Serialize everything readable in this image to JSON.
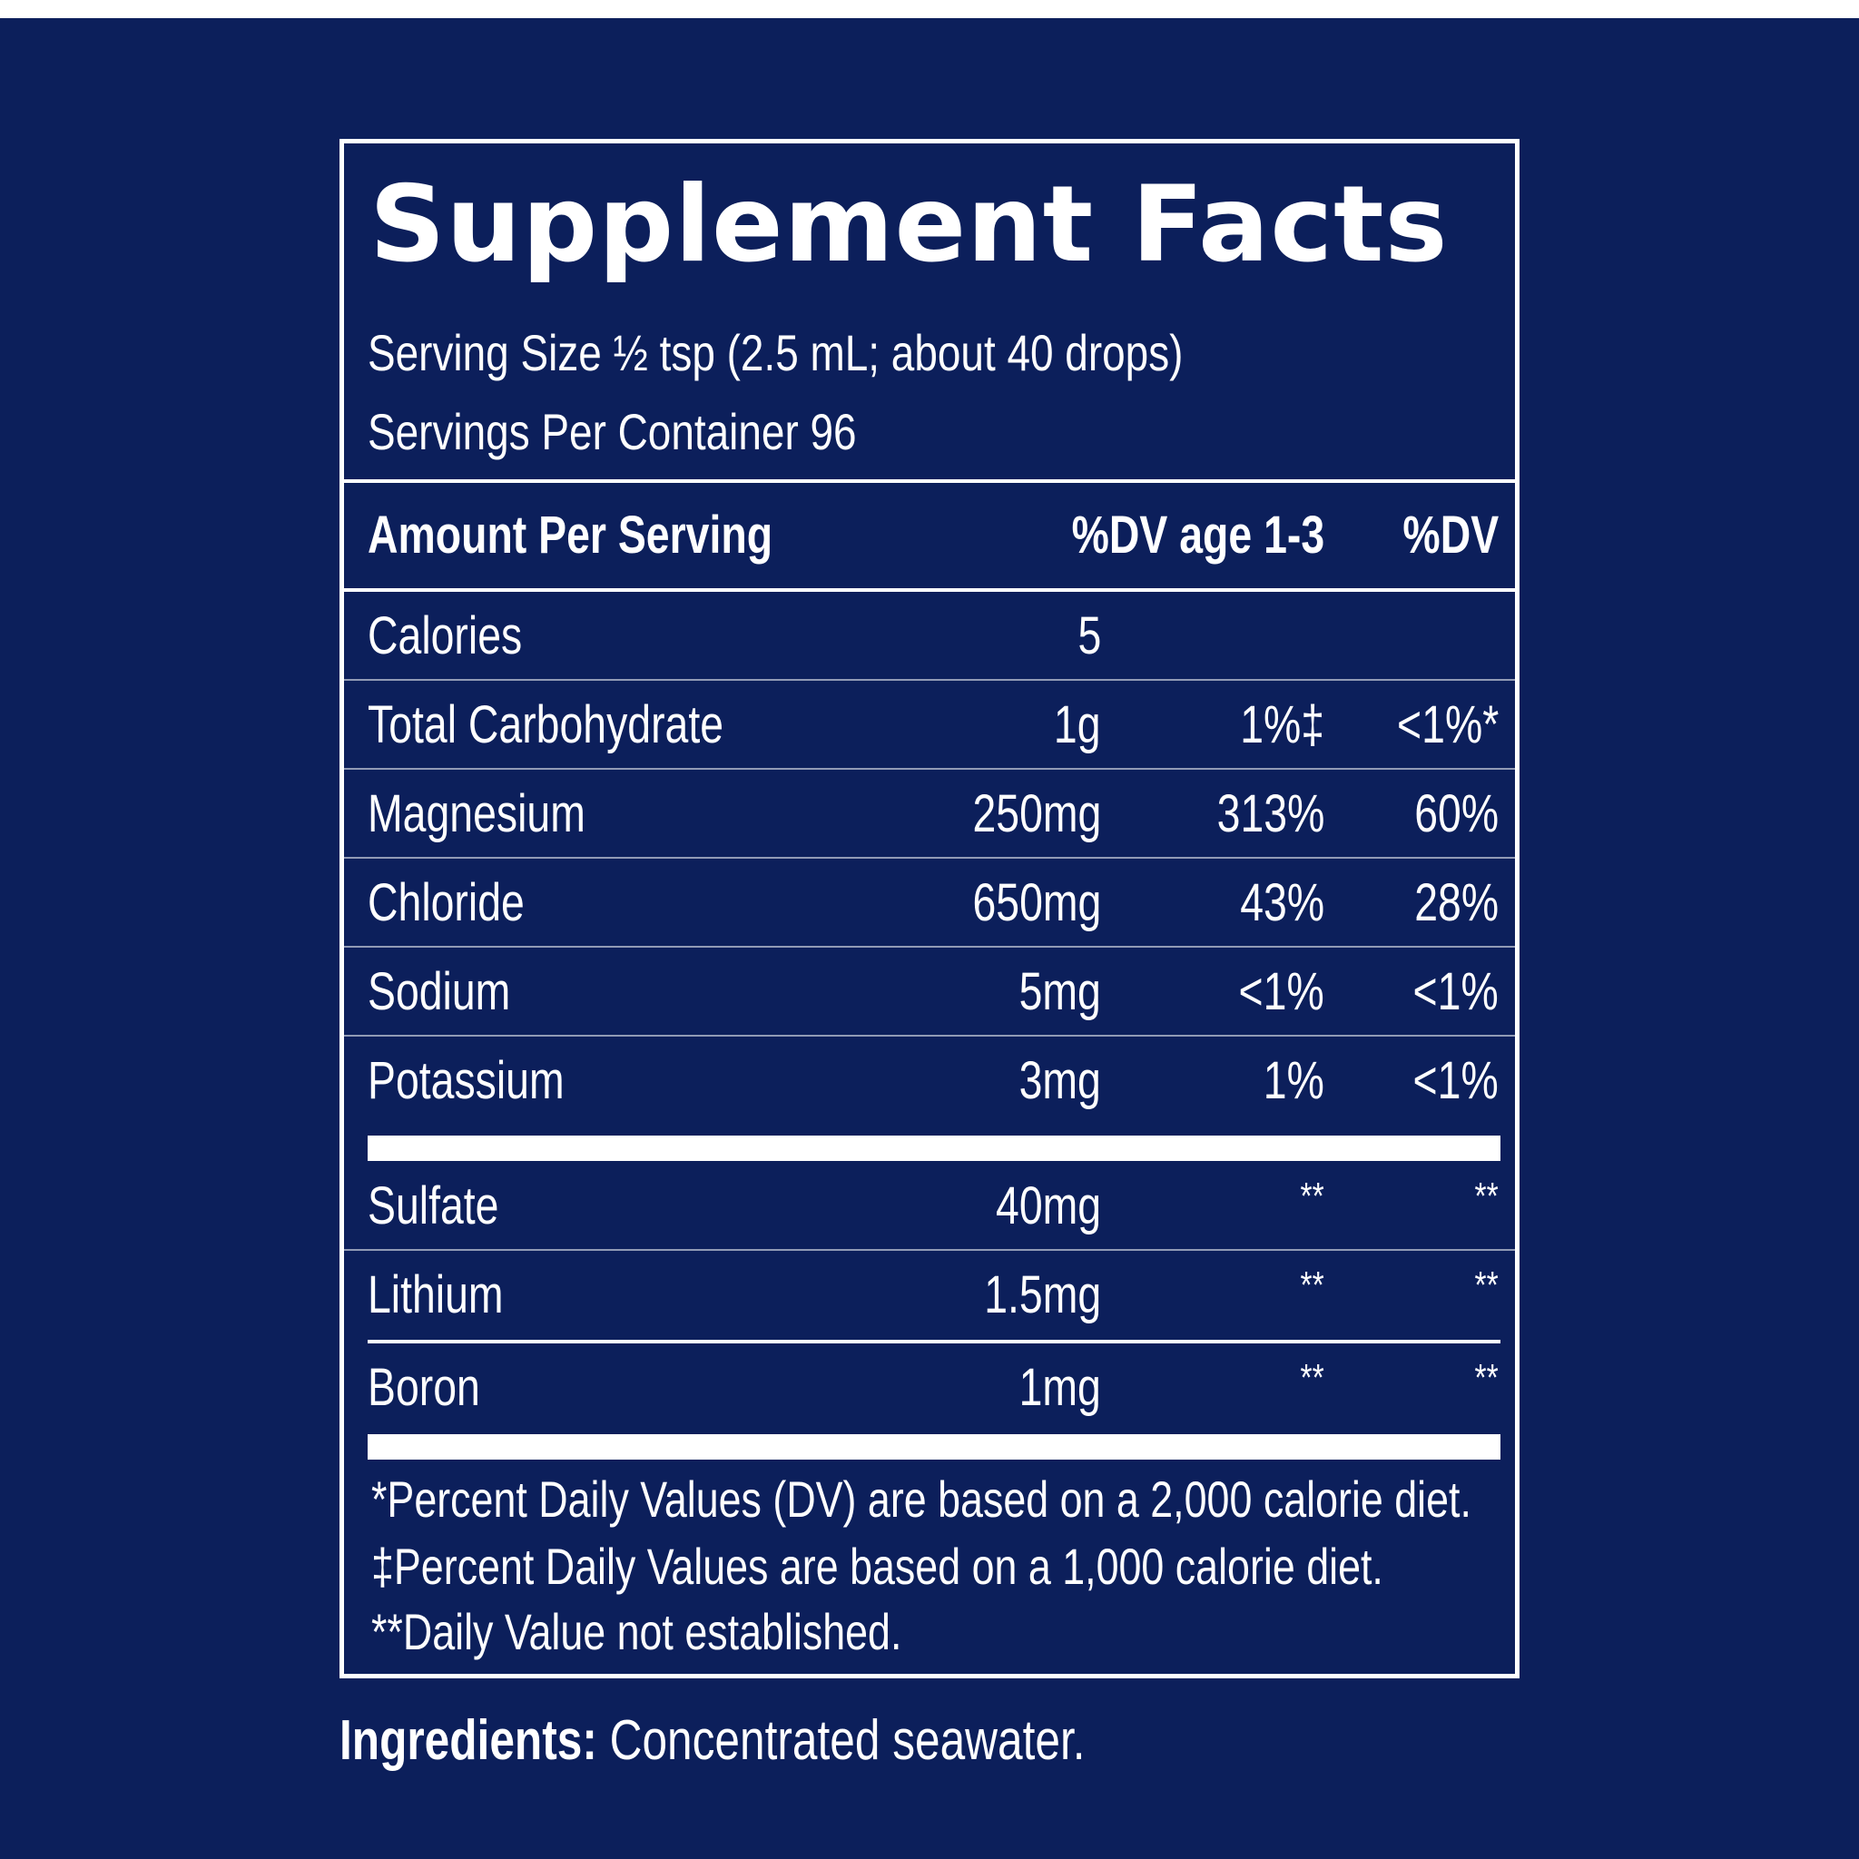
{
  "title": "Supplement Facts",
  "serving_size": "Serving Size ½ tsp (2.5 mL; about 40 drops)",
  "servings_per_container": "Servings Per Container 96",
  "header": {
    "amount_per_serving": "Amount Per Serving",
    "dv_age": "%DV age 1-3",
    "dv": "%DV"
  },
  "rows": [
    {
      "name": "Calories",
      "amount": "5",
      "dv_age": "",
      "dv": ""
    },
    {
      "name": "Total Carbohydrate",
      "amount": "1g",
      "dv_age": "1%‡",
      "dv": "<1%*"
    },
    {
      "name": "Magnesium",
      "amount": "250mg",
      "dv_age": "313%",
      "dv": "60%"
    },
    {
      "name": "Chloride",
      "amount": "650mg",
      "dv_age": "43%",
      "dv": "28%"
    },
    {
      "name": "Sodium",
      "amount": "5mg",
      "dv_age": "<1%",
      "dv": "<1%"
    },
    {
      "name": "Potassium",
      "amount": "3mg",
      "dv_age": "1%",
      "dv": "<1%"
    }
  ],
  "rows_not_established": [
    {
      "name": "Sulfate",
      "amount": "40mg",
      "dv_age": "**",
      "dv": "**"
    },
    {
      "name": "Lithium",
      "amount": "1.5mg",
      "dv_age": "**",
      "dv": "**"
    },
    {
      "name": "Boron",
      "amount": "1mg",
      "dv_age": "**",
      "dv": "**"
    }
  ],
  "footnotes": [
    "*Percent Daily Values (DV) are based on a 2,000 calorie diet.",
    "‡Percent Daily Values are based on a 1,000 calorie diet.",
    "**Daily Value not established."
  ],
  "ingredients": {
    "label": "Ingredients:",
    "value": "Concentrated seawater."
  },
  "colors": {
    "background": "#0c1f5b",
    "text": "#ffffff"
  }
}
